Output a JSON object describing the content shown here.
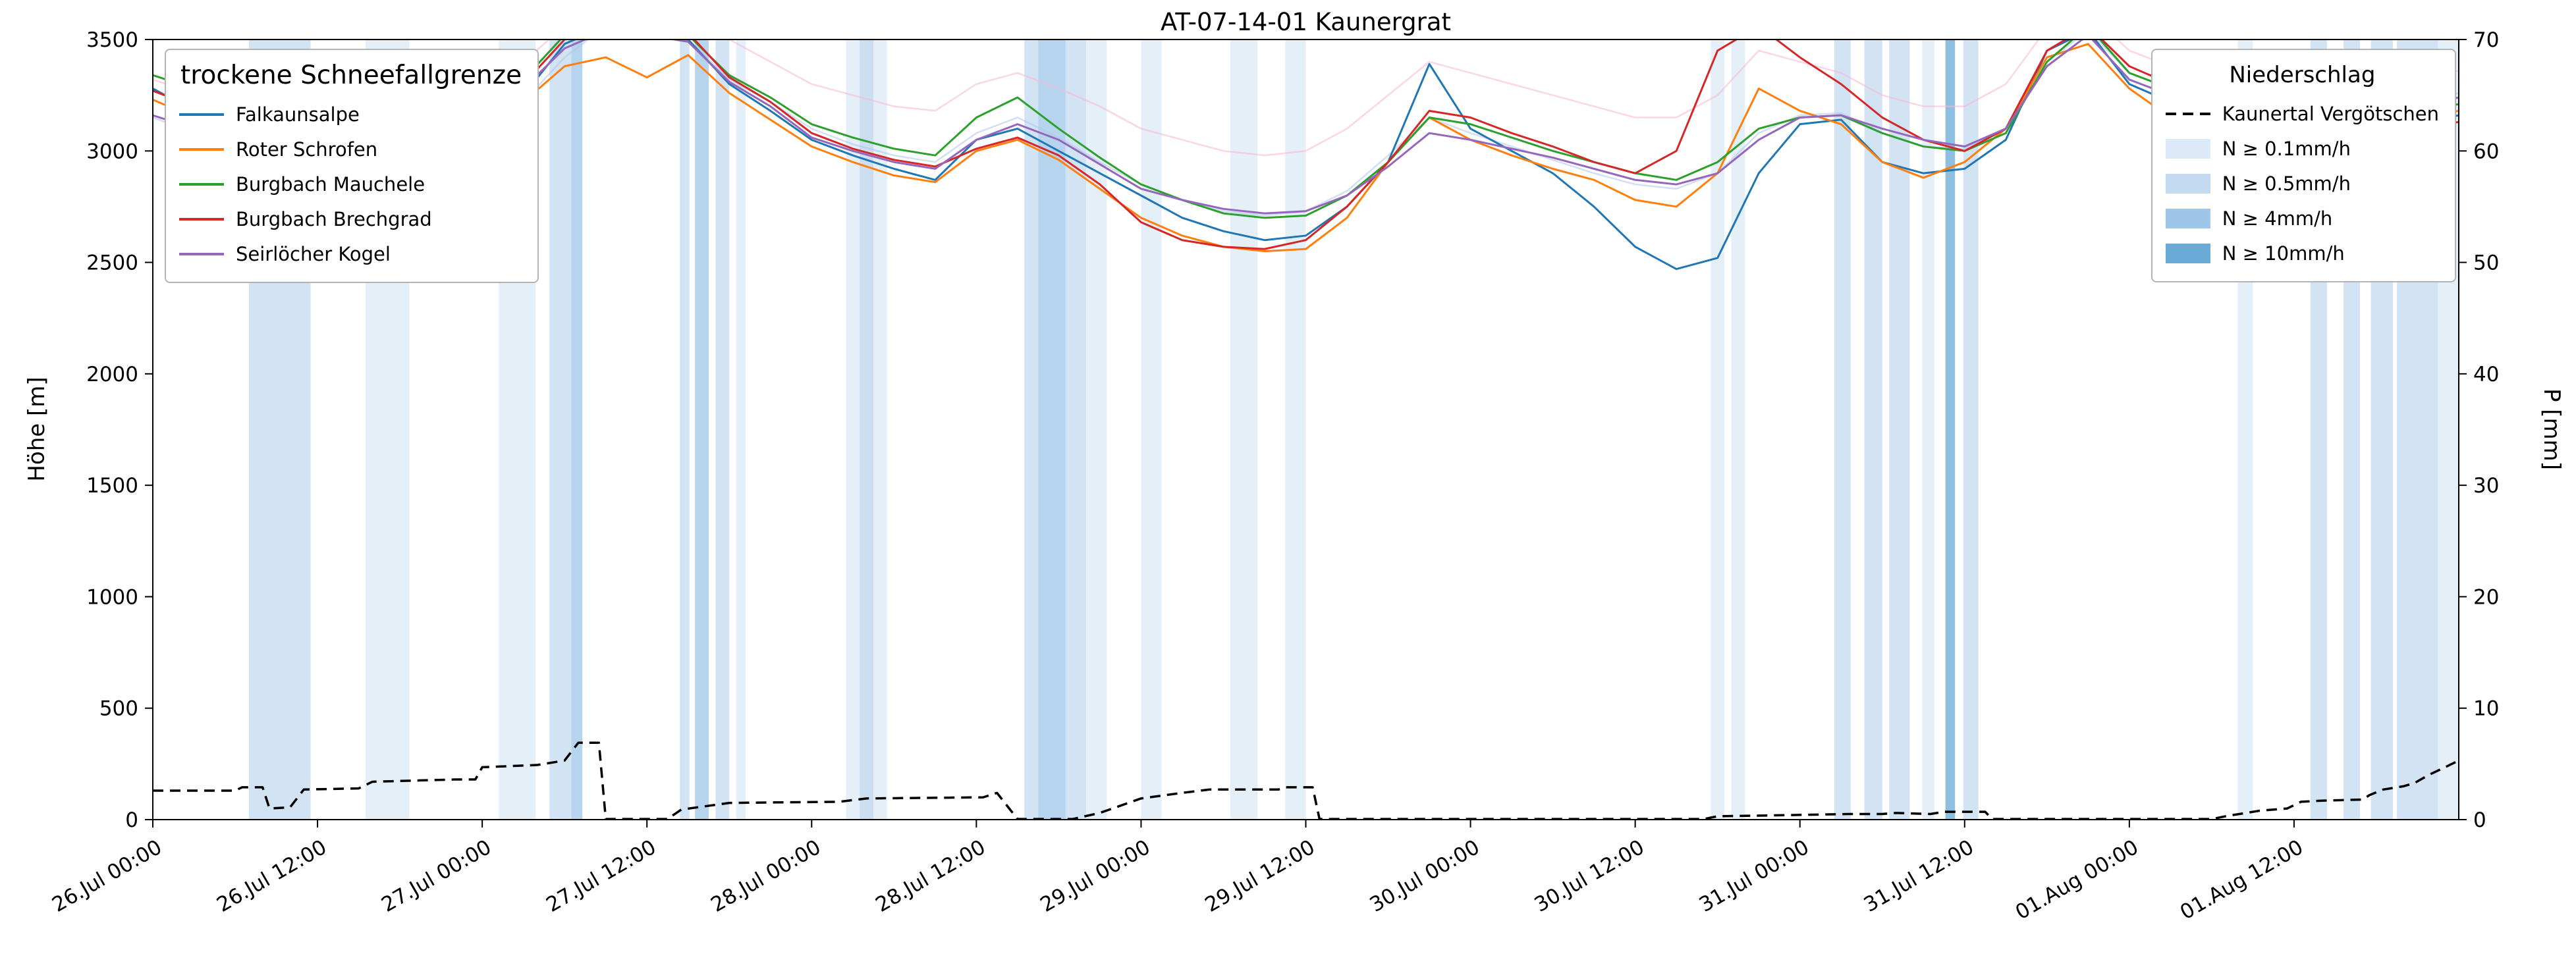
{
  "title": "AT-07-14-01 Kaunergrat",
  "axes": {
    "y_left": {
      "label": "Höhe [m]",
      "range": [
        0,
        3500
      ],
      "ticks": [
        0,
        500,
        1000,
        1500,
        2000,
        2500,
        3000,
        3500
      ]
    },
    "y_right": {
      "label": "P [mm]",
      "range": [
        0,
        70
      ],
      "ticks": [
        0,
        10,
        20,
        30,
        40,
        50,
        60,
        70
      ]
    },
    "x": {
      "tick_hours": [
        0,
        12,
        24,
        36,
        48,
        60,
        72,
        84,
        96,
        108,
        120,
        132,
        144,
        156
      ],
      "tick_labels": [
        "26.Jul 00:00",
        "26.Jul 12:00",
        "27.Jul 00:00",
        "27.Jul 12:00",
        "28.Jul 00:00",
        "28.Jul 12:00",
        "29.Jul 00:00",
        "29.Jul 12:00",
        "30.Jul 00:00",
        "30.Jul 12:00",
        "31.Jul 00:00",
        "31.Jul 12:00",
        "01.Aug 00:00",
        "01.Aug 12:00"
      ],
      "hours_total": 168
    }
  },
  "legend_left": {
    "title": "trockene Schneefallgrenze",
    "entries": [
      {
        "label": "Falkaunsalpe",
        "color": "#1f77b4"
      },
      {
        "label": "Roter Schrofen",
        "color": "#ff7f0e"
      },
      {
        "label": "Burgbach Mauchele",
        "color": "#2ca02c"
      },
      {
        "label": "Burgbach Brechgrad",
        "color": "#d62728"
      },
      {
        "label": "Seirlöcher Kogel",
        "color": "#9467bd"
      }
    ]
  },
  "legend_right": {
    "title": "Niederschlag",
    "line_entry": {
      "label": "Kaunertal Vergötschen",
      "color": "#000000",
      "style": "dashed"
    },
    "band_entries": [
      {
        "label": "N ≥ 0.1mm/h",
        "color": "#dce9f6"
      },
      {
        "label": "N ≥ 0.5mm/h",
        "color": "#c3d9ef"
      },
      {
        "label": "N ≥ 4mm/h",
        "color": "#9ec6e8"
      },
      {
        "label": "N ≥ 10mm/h",
        "color": "#6aaad6"
      }
    ]
  },
  "chart_data": {
    "type": "line",
    "title": "AT-07-14-01 Kaunergrat",
    "x_unit": "hours since 26 Jul 00:00",
    "ylim_left": [
      0,
      3500
    ],
    "ylim_right": [
      0,
      70
    ],
    "grid": false,
    "x_hours": [
      0,
      3,
      6,
      9,
      12,
      15,
      18,
      21,
      24,
      27,
      30,
      33,
      36,
      39,
      42,
      45,
      48,
      51,
      54,
      57,
      60,
      63,
      66,
      69,
      72,
      75,
      78,
      81,
      84,
      87,
      90,
      93,
      96,
      99,
      102,
      105,
      108,
      111,
      114,
      117,
      120,
      123,
      126,
      129,
      132,
      135,
      138,
      141,
      144,
      147,
      150,
      153,
      156,
      159,
      162,
      165,
      168
    ],
    "series": [
      {
        "name": "Falkaunsalpe",
        "color": "#1f77b4",
        "axis": "left",
        "values": [
          3280,
          3180,
          3120,
          3160,
          3220,
          3280,
          3340,
          3150,
          3080,
          3250,
          3480,
          3560,
          3540,
          3500,
          3300,
          3180,
          3050,
          2980,
          2920,
          2870,
          3050,
          3100,
          3000,
          2900,
          2800,
          2700,
          2640,
          2600,
          2620,
          2750,
          2950,
          3390,
          3100,
          3000,
          2900,
          2750,
          2570,
          2470,
          2520,
          2900,
          3120,
          3140,
          2950,
          2900,
          2920,
          3050,
          3450,
          3540,
          3300,
          3220,
          3180,
          3140,
          3120,
          3100,
          3080,
          3120,
          3160
        ]
      },
      {
        "name": "Roter Schrofen",
        "color": "#ff7f0e",
        "axis": "left",
        "values": [
          3230,
          3150,
          3080,
          3060,
          3120,
          3220,
          3300,
          3100,
          3050,
          3220,
          3380,
          3420,
          3330,
          3430,
          3260,
          3140,
          3020,
          2950,
          2890,
          2860,
          3000,
          3050,
          2960,
          2830,
          2700,
          2620,
          2570,
          2550,
          2560,
          2700,
          2950,
          3150,
          3050,
          2980,
          2920,
          2870,
          2780,
          2750,
          2900,
          3280,
          3180,
          3120,
          2950,
          2880,
          2950,
          3100,
          3420,
          3480,
          3280,
          3150,
          3230,
          3180,
          3120,
          3160,
          3100,
          3140,
          3180
        ]
      },
      {
        "name": "Burgbach Mauchele",
        "color": "#2ca02c",
        "axis": "left",
        "values": [
          3340,
          3280,
          3230,
          3260,
          3300,
          3340,
          3380,
          3250,
          3180,
          3320,
          3520,
          3580,
          3560,
          3520,
          3340,
          3240,
          3120,
          3060,
          3010,
          2980,
          3150,
          3240,
          3100,
          2970,
          2850,
          2780,
          2720,
          2700,
          2710,
          2800,
          2950,
          3150,
          3120,
          3060,
          3000,
          2950,
          2900,
          2870,
          2950,
          3100,
          3150,
          3160,
          3080,
          3020,
          3000,
          3080,
          3400,
          3560,
          3350,
          3280,
          3220,
          3180,
          3150,
          3140,
          3160,
          3180,
          3210
        ]
      },
      {
        "name": "Burgbach Brechgrad",
        "color": "#d62728",
        "axis": "left",
        "values": [
          3270,
          3200,
          3150,
          3180,
          3240,
          3300,
          3360,
          3200,
          3120,
          3300,
          3500,
          3570,
          3550,
          3530,
          3330,
          3220,
          3080,
          3010,
          2960,
          2930,
          3010,
          3060,
          2980,
          2850,
          2680,
          2600,
          2570,
          2560,
          2600,
          2750,
          2950,
          3180,
          3150,
          3080,
          3020,
          2950,
          2900,
          3000,
          3450,
          3560,
          3420,
          3300,
          3150,
          3050,
          3000,
          3100,
          3450,
          3560,
          3380,
          3300,
          3250,
          3200,
          3150,
          3100,
          3080,
          3100,
          3130
        ]
      },
      {
        "name": "Seirlöcher Kogel",
        "color": "#9467bd",
        "axis": "left",
        "values": [
          3160,
          3100,
          3060,
          3100,
          3160,
          3240,
          3320,
          3180,
          3100,
          3280,
          3460,
          3540,
          3520,
          3490,
          3310,
          3200,
          3060,
          3000,
          2950,
          2920,
          3050,
          3120,
          3050,
          2940,
          2830,
          2780,
          2740,
          2720,
          2730,
          2800,
          2930,
          3080,
          3050,
          3010,
          2970,
          2920,
          2870,
          2850,
          2900,
          3050,
          3150,
          3160,
          3100,
          3050,
          3020,
          3100,
          3380,
          3520,
          3320,
          3250,
          3230,
          3200,
          3180,
          3160,
          3180,
          3200,
          3240
        ]
      }
    ],
    "background_series": [
      {
        "name": "faint-pink",
        "color": "#f7b6d2",
        "axis": "left",
        "values": [
          3320,
          3260,
          3200,
          3240,
          3300,
          3360,
          3420,
          3300,
          3250,
          3400,
          3560,
          3620,
          3620,
          3620,
          3500,
          3400,
          3300,
          3250,
          3200,
          3180,
          3300,
          3350,
          3280,
          3200,
          3100,
          3050,
          3000,
          2980,
          3000,
          3100,
          3250,
          3400,
          3350,
          3300,
          3250,
          3200,
          3150,
          3150,
          3250,
          3450,
          3400,
          3350,
          3250,
          3200,
          3200,
          3300,
          3550,
          3620,
          3450,
          3380,
          3320,
          3300,
          3280,
          3260,
          3280,
          3320,
          3360
        ]
      },
      {
        "name": "faint-lightblue",
        "color": "#aec7e8",
        "axis": "left",
        "values": [
          3150,
          3080,
          3020,
          3060,
          3120,
          3200,
          3280,
          3120,
          3050,
          3220,
          3420,
          3560,
          3540,
          3500,
          3320,
          3220,
          3100,
          3030,
          2980,
          2950,
          3080,
          3150,
          3060,
          2950,
          2850,
          2780,
          2730,
          2710,
          2730,
          2820,
          2980,
          3150,
          3080,
          3020,
          2960,
          2900,
          2850,
          2830,
          2900,
          3080,
          3160,
          3170,
          3080,
          3020,
          3010,
          3100,
          3400,
          3540,
          3350,
          3280,
          3240,
          3200,
          3180,
          3160,
          3180,
          3220,
          3260
        ]
      }
    ],
    "precip_line": {
      "name": "Kaunertal Vergötschen",
      "color": "#000000",
      "style": "dashed",
      "axis": "right",
      "unit": "mm",
      "points": [
        [
          0,
          2.6
        ],
        [
          6,
          2.6
        ],
        [
          6.5,
          2.9
        ],
        [
          8,
          2.9
        ],
        [
          8.5,
          1.0
        ],
        [
          10,
          1.1
        ],
        [
          11,
          2.7
        ],
        [
          15,
          2.8
        ],
        [
          16,
          3.4
        ],
        [
          22,
          3.6
        ],
        [
          23.5,
          3.6
        ],
        [
          24,
          4.7
        ],
        [
          28,
          4.9
        ],
        [
          30,
          5.3
        ],
        [
          31,
          6.9
        ],
        [
          32.5,
          6.9
        ],
        [
          33,
          0.05
        ],
        [
          37.5,
          0.05
        ],
        [
          38.5,
          0.9
        ],
        [
          42,
          1.5
        ],
        [
          50,
          1.6
        ],
        [
          52,
          1.9
        ],
        [
          60.5,
          2.0
        ],
        [
          61.5,
          2.4
        ],
        [
          63,
          0.05
        ],
        [
          67,
          0.05
        ],
        [
          69,
          0.6
        ],
        [
          72,
          1.9
        ],
        [
          75,
          2.4
        ],
        [
          77,
          2.7
        ],
        [
          82,
          2.7
        ],
        [
          82.5,
          2.9
        ],
        [
          84.5,
          2.9
        ],
        [
          85,
          0.05
        ],
        [
          113,
          0.05
        ],
        [
          114,
          0.3
        ],
        [
          119,
          0.4
        ],
        [
          123.5,
          0.5
        ],
        [
          126,
          0.5
        ],
        [
          127,
          0.6
        ],
        [
          129.5,
          0.5
        ],
        [
          130.5,
          0.7
        ],
        [
          133.5,
          0.7
        ],
        [
          134,
          0.05
        ],
        [
          150,
          0.05
        ],
        [
          151,
          0.3
        ],
        [
          153.5,
          0.8
        ],
        [
          155.5,
          1.0
        ],
        [
          156.5,
          1.6
        ],
        [
          158,
          1.7
        ],
        [
          161,
          1.8
        ],
        [
          161.5,
          2.2
        ],
        [
          162.5,
          2.7
        ],
        [
          164,
          3.0
        ],
        [
          164.8,
          3.3
        ],
        [
          165.8,
          4.0
        ],
        [
          167,
          4.7
        ],
        [
          168,
          5.3
        ]
      ]
    },
    "precip_bands": {
      "colors": {
        "0.1": "#dce9f6",
        "0.5": "#c3d9ef",
        "4": "#9ec6e8",
        "10": "#6aaad6"
      },
      "intervals": [
        [
          7,
          11.5,
          "0.5"
        ],
        [
          15.5,
          18.7,
          "0.1"
        ],
        [
          25.2,
          27.9,
          "0.1"
        ],
        [
          28.9,
          30.5,
          "0.5"
        ],
        [
          30.5,
          31.3,
          "4"
        ],
        [
          38.4,
          39.1,
          "0.5"
        ],
        [
          39.5,
          40.5,
          "4"
        ],
        [
          41,
          42,
          "0.5"
        ],
        [
          42.5,
          43.2,
          "0.1"
        ],
        [
          50.5,
          53.5,
          "0.1"
        ],
        [
          51.5,
          52.5,
          "0.5"
        ],
        [
          63.5,
          64.5,
          "0.5"
        ],
        [
          64.5,
          66.5,
          "4"
        ],
        [
          66.5,
          68,
          "0.5"
        ],
        [
          68,
          69.5,
          "0.1"
        ],
        [
          72,
          73.5,
          "0.1"
        ],
        [
          78.5,
          80.5,
          "0.1"
        ],
        [
          82.5,
          84,
          "0.1"
        ],
        [
          113.5,
          114.5,
          "0.1"
        ],
        [
          115,
          116,
          "0.1"
        ],
        [
          122.5,
          123.7,
          "0.5"
        ],
        [
          124.7,
          126,
          "0.5"
        ],
        [
          126.5,
          128,
          "0.5"
        ],
        [
          128.9,
          129.8,
          "0.1"
        ],
        [
          130.6,
          131.3,
          "10"
        ],
        [
          131.9,
          133,
          "0.5"
        ],
        [
          151.9,
          153,
          "0.1"
        ],
        [
          157.2,
          158.4,
          "0.5"
        ],
        [
          159.6,
          160.8,
          "0.5"
        ],
        [
          161.6,
          163.2,
          "0.5"
        ],
        [
          163.5,
          166.5,
          "0.5"
        ],
        [
          166.5,
          168,
          "0.1"
        ]
      ]
    }
  }
}
